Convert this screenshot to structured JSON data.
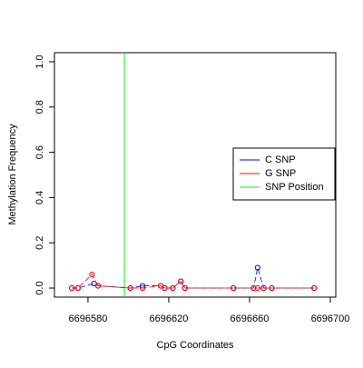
{
  "chart_data": {
    "type": "line",
    "xlabel": "CpG Coordinates",
    "ylabel": "Methylation Frequency",
    "xlim": [
      6696563.4,
      6696702.7
    ],
    "ylim": [
      -0.04,
      1.04
    ],
    "xticks": [
      6696580,
      6696620,
      6696660,
      6696700
    ],
    "yticks": [
      {
        "value": 0,
        "label": "0.0"
      },
      0.2,
      0.4,
      0.6,
      0.8,
      {
        "value": 1,
        "label": "1.0"
      }
    ],
    "series": [
      {
        "name": "C SNP",
        "color": "#0000ff",
        "x": [
          6696572,
          6696575,
          6696583,
          6696585,
          6696601,
          6696607,
          6696616,
          6696618,
          6696622,
          6696626,
          6696628,
          6696652,
          6696662,
          6696664,
          6696667,
          6696671,
          6696692
        ],
        "values": [
          0,
          0,
          0.02,
          0.01,
          0,
          0.01,
          0.01,
          0,
          0,
          0.03,
          0,
          0,
          0,
          0.09,
          0,
          0,
          0
        ]
      },
      {
        "name": "G SNP",
        "color": "#ff0000",
        "x": [
          6696572,
          6696575,
          6696582,
          6696585,
          6696601,
          6696607,
          6696616,
          6696618,
          6696622,
          6696626,
          6696628,
          6696652,
          6696662,
          6696664,
          6696667,
          6696671,
          6696692
        ],
        "values": [
          0,
          0,
          0.06,
          0.01,
          0,
          0,
          0.01,
          0,
          0,
          0.03,
          0,
          0,
          0,
          0,
          0,
          0,
          0
        ]
      }
    ],
    "snp": {
      "name": "SNP Position",
      "color": "#00ff00",
      "x": 6696598
    },
    "legend": "right"
  }
}
